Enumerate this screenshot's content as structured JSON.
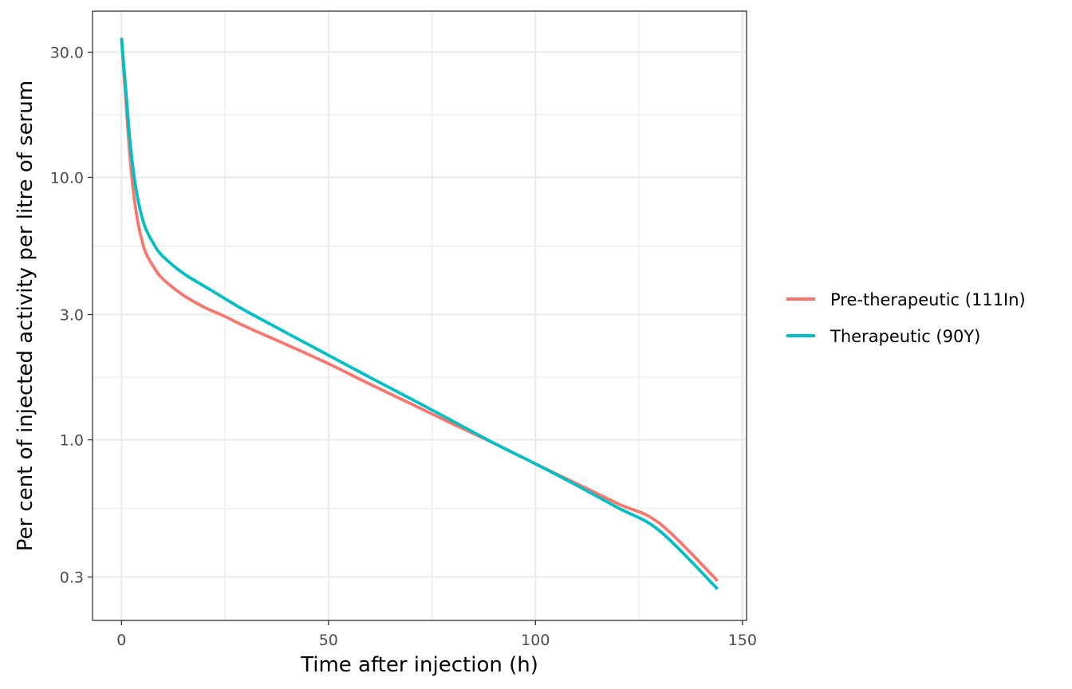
{
  "chart_data": {
    "type": "line",
    "title": "",
    "xlabel": "Time after injection (h)",
    "ylabel": "Per cent of injected activity per litre of serum",
    "xlim": [
      -7,
      151
    ],
    "ylim": [
      0.205,
      43
    ],
    "y_scale": "log",
    "x_ticks": [
      0,
      50,
      100,
      150
    ],
    "x_tick_labels": [
      "0",
      "50",
      "100",
      "150"
    ],
    "y_ticks": [
      0.3,
      1,
      3,
      10,
      30
    ],
    "y_tick_labels": [
      "0.3",
      "1.0",
      "3.0",
      "10.0",
      "30.0"
    ],
    "grid": true,
    "legend_position": "right",
    "series": [
      {
        "name": "Pre-therapeutic (111In)",
        "color": "#F8766D",
        "x": [
          0,
          1,
          2,
          3,
          4,
          5,
          6,
          8,
          10,
          15,
          20,
          25,
          30,
          40,
          50,
          60,
          70,
          80,
          90,
          100,
          110,
          120,
          130,
          144
        ],
        "y": [
          34.0,
          20.0,
          12.2,
          8.5,
          6.7,
          5.7,
          5.1,
          4.5,
          4.1,
          3.55,
          3.2,
          2.95,
          2.7,
          2.3,
          1.95,
          1.63,
          1.37,
          1.15,
          0.97,
          0.81,
          0.68,
          0.57,
          0.48,
          0.29
        ]
      },
      {
        "name": "Therapeutic (90Y)",
        "color": "#00BFC4",
        "x": [
          0,
          1,
          2,
          3,
          4,
          5,
          6,
          8,
          10,
          15,
          20,
          25,
          30,
          40,
          50,
          60,
          70,
          80,
          90,
          100,
          110,
          120,
          130,
          144
        ],
        "y": [
          34.0,
          22.0,
          14.0,
          10.2,
          8.2,
          7.0,
          6.3,
          5.5,
          5.0,
          4.3,
          3.85,
          3.45,
          3.1,
          2.55,
          2.1,
          1.73,
          1.43,
          1.18,
          0.97,
          0.81,
          0.67,
          0.55,
          0.45,
          0.27
        ]
      }
    ]
  }
}
